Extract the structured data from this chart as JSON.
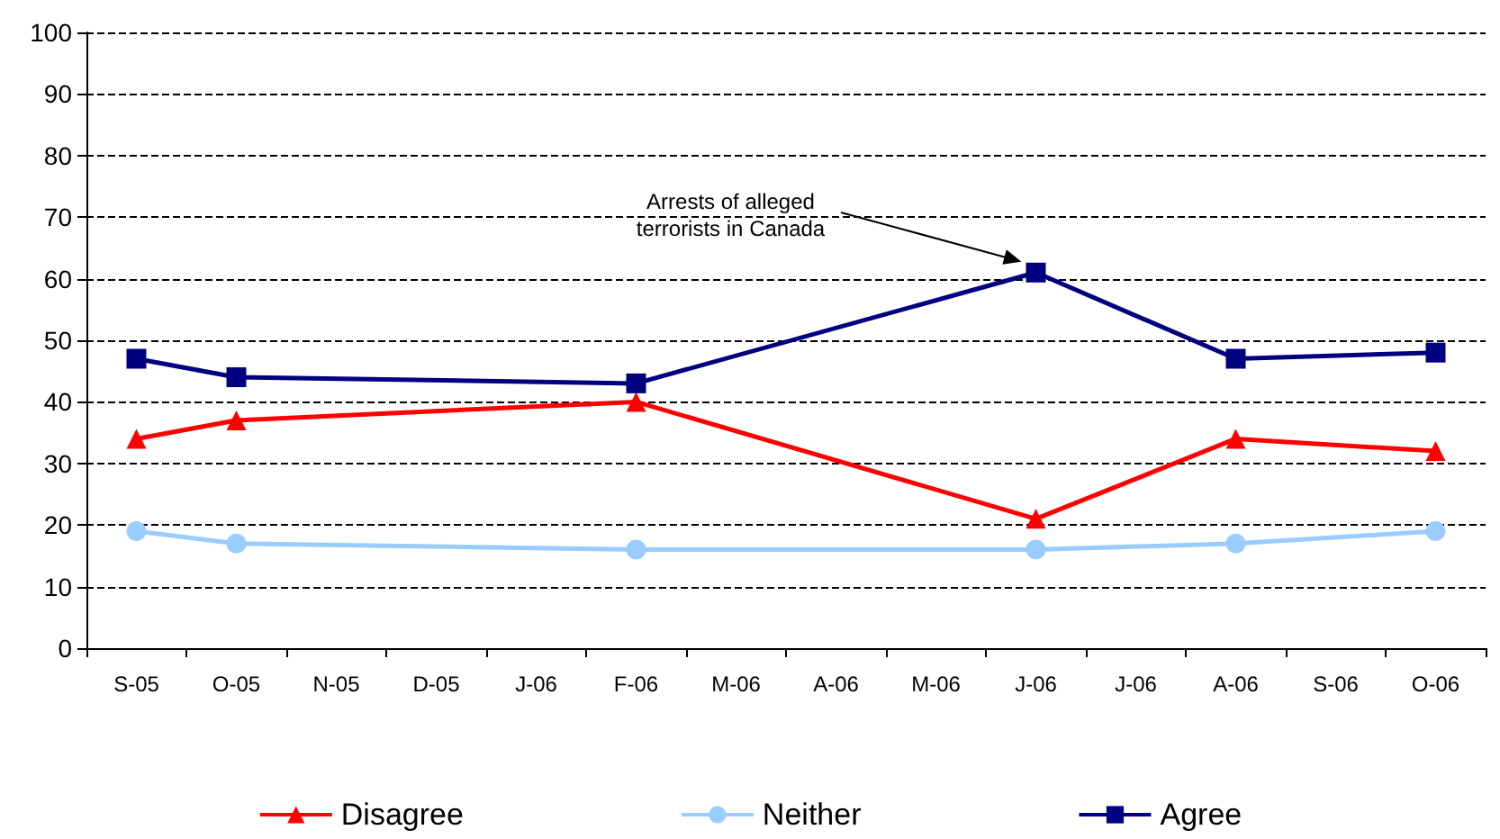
{
  "chart_data": {
    "type": "line",
    "categories": [
      "S-05",
      "O-05",
      "N-05",
      "D-05",
      "J-06",
      "F-06",
      "M-06",
      "A-06",
      "M-06",
      "J-06",
      "J-06",
      "A-06",
      "S-06",
      "O-06"
    ],
    "series": [
      {
        "name": "Disagree",
        "color": "#ff0000",
        "marker": "triangle",
        "values": [
          34,
          37,
          null,
          null,
          null,
          40,
          null,
          null,
          null,
          21,
          null,
          34,
          null,
          32
        ]
      },
      {
        "name": "Neither",
        "color": "#99ccff",
        "marker": "circle",
        "values": [
          19,
          17,
          null,
          null,
          null,
          16,
          null,
          null,
          null,
          16,
          null,
          17,
          null,
          19
        ]
      },
      {
        "name": "Agree",
        "color": "#000080",
        "marker": "square",
        "values": [
          47,
          44,
          null,
          null,
          null,
          43,
          null,
          null,
          null,
          61,
          null,
          47,
          null,
          48
        ]
      }
    ],
    "ylim": [
      0,
      100
    ],
    "yticks": [
      0,
      10,
      20,
      30,
      40,
      50,
      60,
      70,
      80,
      90,
      100
    ],
    "grid": "y",
    "legend": "bottom",
    "line_style": "solid",
    "annotations": [
      "Arrests of alleged terrorists in Canada"
    ]
  }
}
